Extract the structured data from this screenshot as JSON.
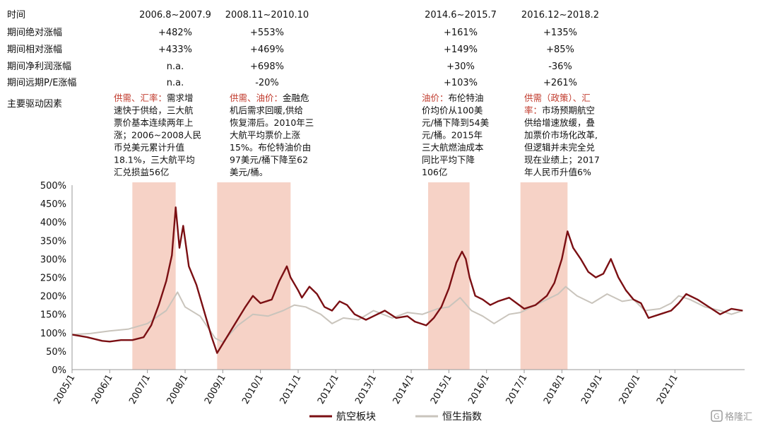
{
  "table": {
    "row_labels": [
      "时间",
      "期间绝对涨幅",
      "期间相对涨幅",
      "期间净利润涨幅",
      "期间远期P/E涨幅",
      "主要驱动因素"
    ],
    "periods": [
      {
        "time": "2006.8~2007.9",
        "abs": "+482%",
        "rel": "+433%",
        "profit": "n.a.",
        "pe": "n.a.",
        "driver_lines": [
          [
            {
              "t": "供需、汇率：",
              "red": true
            },
            {
              "t": "需求增",
              "red": false
            }
          ],
          [
            {
              "t": "速快于供给，三大航",
              "red": false
            }
          ],
          [
            {
              "t": "票价基本连续两年上",
              "red": false
            }
          ],
          [
            {
              "t": "涨；2006~2008人民",
              "red": false
            }
          ],
          [
            {
              "t": "币兑美元累计升值",
              "red": false
            }
          ],
          [
            {
              "t": "18.1%，三大航平均",
              "red": false
            }
          ],
          [
            {
              "t": "汇兑损益56亿",
              "red": false
            }
          ]
        ]
      },
      {
        "time": "2008.11~2010.10",
        "abs": "+553%",
        "rel": "+469%",
        "profit": "+698%",
        "pe": "-20%",
        "driver_lines": [
          [
            {
              "t": "供需、油价：",
              "red": true
            },
            {
              "t": "金融危",
              "red": false
            }
          ],
          [
            {
              "t": "机后需求回暖,供给",
              "red": false
            }
          ],
          [
            {
              "t": "恢复滞后。2010年三",
              "red": false
            }
          ],
          [
            {
              "t": "大航平均票价上涨",
              "red": false
            }
          ],
          [
            {
              "t": "15%。布伦特油价由",
              "red": false
            }
          ],
          [
            {
              "t": "97美元/桶下降至62",
              "red": false
            }
          ],
          [
            {
              "t": "美元/桶。",
              "red": false
            }
          ]
        ]
      },
      {
        "time": "2014.6~2015.7",
        "abs": "+161%",
        "rel": "+149%",
        "profit": "+30%",
        "pe": "+103%",
        "driver_lines": [
          [
            {
              "t": "油价：",
              "red": true
            },
            {
              "t": "布伦特油",
              "red": false
            }
          ],
          [
            {
              "t": "价均价从100美",
              "red": false
            }
          ],
          [
            {
              "t": "元/桶下降到54美",
              "red": false
            }
          ],
          [
            {
              "t": "元/桶。2015年",
              "red": false
            }
          ],
          [
            {
              "t": "三大航燃油成本",
              "red": false
            }
          ],
          [
            {
              "t": "同比平均下降",
              "red": false
            }
          ],
          [
            {
              "t": "106亿",
              "red": false
            }
          ]
        ]
      },
      {
        "time": "2016.12~2018.2",
        "abs": "+135%",
        "rel": "+85%",
        "profit": "-36%",
        "pe": "+261%",
        "driver_lines": [
          [
            {
              "t": "供需（政策）、汇",
              "red": true
            }
          ],
          [
            {
              "t": "率：",
              "red": true
            },
            {
              "t": "市场预期航空",
              "red": false
            }
          ],
          [
            {
              "t": "供给增速放缓，叠",
              "red": false
            }
          ],
          [
            {
              "t": "加票价市场化改革,",
              "red": false
            }
          ],
          [
            {
              "t": "但逻辑并未完全兑",
              "red": false
            }
          ],
          [
            {
              "t": "现在业绩上；2017",
              "red": false
            }
          ],
          [
            {
              "t": "年人民币升值6%",
              "red": false
            }
          ]
        ]
      }
    ]
  },
  "chart_data": {
    "type": "line",
    "x_ticks": [
      "2005/1",
      "2006/1",
      "2007/1",
      "2008/1",
      "2009/1",
      "2010/1",
      "2011/1",
      "2012/1",
      "2013/1",
      "2014/1",
      "2015/1",
      "2016/1",
      "2017/1",
      "2018/1",
      "2019/1",
      "2020/1",
      "2021/1"
    ],
    "y_ticks": [
      "0%",
      "50%",
      "100%",
      "150%",
      "200%",
      "250%",
      "300%",
      "350%",
      "400%",
      "450%",
      "500%"
    ],
    "ylim": [
      0,
      500
    ],
    "xlim": [
      2005.0,
      2022.85
    ],
    "shaded_periods": [
      [
        2006.6,
        2007.75
      ],
      [
        2008.85,
        2010.8
      ],
      [
        2014.45,
        2015.55
      ],
      [
        2016.9,
        2018.15
      ]
    ],
    "series": [
      {
        "name": "航空板块",
        "color": "#7b0f13",
        "points": [
          [
            2005.0,
            95
          ],
          [
            2005.4,
            88
          ],
          [
            2005.8,
            78
          ],
          [
            2006.0,
            76
          ],
          [
            2006.3,
            80
          ],
          [
            2006.6,
            80
          ],
          [
            2006.9,
            88
          ],
          [
            2007.1,
            120
          ],
          [
            2007.3,
            175
          ],
          [
            2007.5,
            240
          ],
          [
            2007.65,
            310
          ],
          [
            2007.75,
            440
          ],
          [
            2007.85,
            330
          ],
          [
            2007.95,
            390
          ],
          [
            2008.1,
            280
          ],
          [
            2008.3,
            230
          ],
          [
            2008.5,
            160
          ],
          [
            2008.7,
            90
          ],
          [
            2008.85,
            45
          ],
          [
            2009.0,
            70
          ],
          [
            2009.3,
            120
          ],
          [
            2009.6,
            170
          ],
          [
            2009.8,
            200
          ],
          [
            2010.0,
            180
          ],
          [
            2010.3,
            190
          ],
          [
            2010.5,
            240
          ],
          [
            2010.7,
            280
          ],
          [
            2010.8,
            250
          ],
          [
            2011.0,
            215
          ],
          [
            2011.1,
            195
          ],
          [
            2011.3,
            225
          ],
          [
            2011.5,
            205
          ],
          [
            2011.7,
            170
          ],
          [
            2011.9,
            160
          ],
          [
            2012.1,
            185
          ],
          [
            2012.3,
            175
          ],
          [
            2012.5,
            150
          ],
          [
            2012.8,
            135
          ],
          [
            2013.0,
            145
          ],
          [
            2013.3,
            160
          ],
          [
            2013.6,
            140
          ],
          [
            2013.9,
            145
          ],
          [
            2014.1,
            130
          ],
          [
            2014.4,
            120
          ],
          [
            2014.6,
            140
          ],
          [
            2014.8,
            170
          ],
          [
            2015.0,
            220
          ],
          [
            2015.2,
            290
          ],
          [
            2015.35,
            320
          ],
          [
            2015.45,
            300
          ],
          [
            2015.55,
            250
          ],
          [
            2015.7,
            200
          ],
          [
            2015.9,
            190
          ],
          [
            2016.1,
            175
          ],
          [
            2016.3,
            185
          ],
          [
            2016.6,
            195
          ],
          [
            2016.8,
            180
          ],
          [
            2017.0,
            165
          ],
          [
            2017.3,
            175
          ],
          [
            2017.6,
            200
          ],
          [
            2017.8,
            235
          ],
          [
            2018.0,
            300
          ],
          [
            2018.15,
            375
          ],
          [
            2018.3,
            330
          ],
          [
            2018.5,
            300
          ],
          [
            2018.7,
            265
          ],
          [
            2018.9,
            250
          ],
          [
            2019.1,
            260
          ],
          [
            2019.3,
            300
          ],
          [
            2019.5,
            250
          ],
          [
            2019.7,
            215
          ],
          [
            2019.9,
            190
          ],
          [
            2020.1,
            180
          ],
          [
            2020.3,
            140
          ],
          [
            2020.6,
            150
          ],
          [
            2020.9,
            160
          ],
          [
            2021.1,
            180
          ],
          [
            2021.3,
            205
          ],
          [
            2021.6,
            190
          ],
          [
            2021.9,
            170
          ],
          [
            2022.2,
            150
          ],
          [
            2022.5,
            165
          ],
          [
            2022.8,
            160
          ]
        ]
      },
      {
        "name": "恒生指数",
        "color": "#c9c4bc",
        "points": [
          [
            2005.0,
            95
          ],
          [
            2005.5,
            98
          ],
          [
            2006.0,
            105
          ],
          [
            2006.5,
            110
          ],
          [
            2007.0,
            125
          ],
          [
            2007.5,
            160
          ],
          [
            2007.8,
            210
          ],
          [
            2008.0,
            170
          ],
          [
            2008.4,
            145
          ],
          [
            2008.8,
            85
          ],
          [
            2009.0,
            75
          ],
          [
            2009.4,
            120
          ],
          [
            2009.8,
            150
          ],
          [
            2010.2,
            145
          ],
          [
            2010.6,
            160
          ],
          [
            2010.9,
            175
          ],
          [
            2011.2,
            170
          ],
          [
            2011.6,
            150
          ],
          [
            2011.9,
            125
          ],
          [
            2012.2,
            140
          ],
          [
            2012.6,
            135
          ],
          [
            2013.0,
            160
          ],
          [
            2013.5,
            140
          ],
          [
            2013.9,
            155
          ],
          [
            2014.3,
            150
          ],
          [
            2014.7,
            165
          ],
          [
            2015.0,
            170
          ],
          [
            2015.3,
            195
          ],
          [
            2015.6,
            160
          ],
          [
            2015.9,
            145
          ],
          [
            2016.2,
            125
          ],
          [
            2016.6,
            150
          ],
          [
            2016.9,
            155
          ],
          [
            2017.2,
            170
          ],
          [
            2017.6,
            190
          ],
          [
            2017.9,
            205
          ],
          [
            2018.1,
            225
          ],
          [
            2018.4,
            200
          ],
          [
            2018.8,
            180
          ],
          [
            2019.2,
            205
          ],
          [
            2019.6,
            185
          ],
          [
            2019.9,
            190
          ],
          [
            2020.2,
            160
          ],
          [
            2020.6,
            165
          ],
          [
            2020.9,
            180
          ],
          [
            2021.1,
            200
          ],
          [
            2021.4,
            190
          ],
          [
            2021.8,
            170
          ],
          [
            2022.2,
            160
          ],
          [
            2022.5,
            150
          ],
          [
            2022.8,
            160
          ]
        ]
      }
    ]
  },
  "legend": [
    {
      "label": "航空板块",
      "color": "#7b0f13"
    },
    {
      "label": "恒生指数",
      "color": "#c9c4bc"
    }
  ],
  "colors": {
    "shade": "#f6d2c6",
    "axis": "#999999",
    "driver_red": "#c0392b"
  },
  "watermark": "格隆汇",
  "watermark_icon": "logo-g-icon"
}
